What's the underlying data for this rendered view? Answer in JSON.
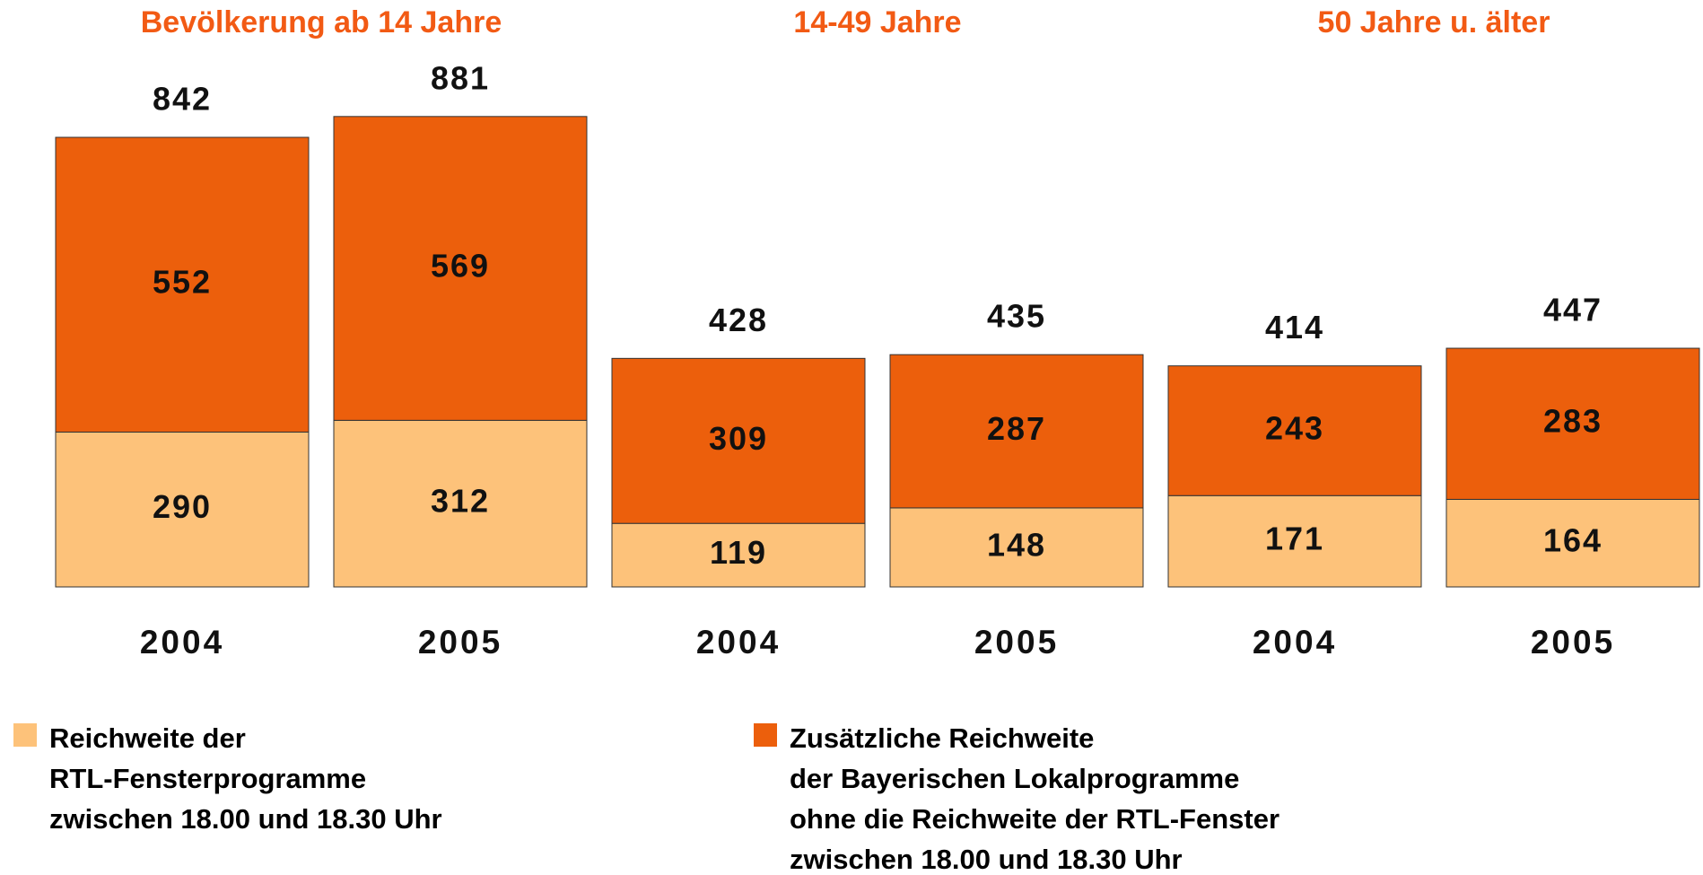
{
  "chart_data": {
    "type": "stacked_bar",
    "groups": [
      "Bevölkerung ab 14 Jahre",
      "14-49 Jahre",
      "50 Jahre u. älter"
    ],
    "categories": [
      "2004",
      "2005",
      "2004",
      "2005",
      "2004",
      "2005"
    ],
    "series": [
      {
        "name": "Reichweite der\nRTL-Fensterprogramme\nzwischen 18.00 und 18.30 Uhr",
        "color": "#fdc27a",
        "values": [
          290,
          312,
          119,
          148,
          171,
          164
        ]
      },
      {
        "name": "Zusätzliche Reichweite\nder Bayerischen Lokalprogramme\nohne die Reichweite der RTL-Fenster\nzwischen  18.00 und 18.30 Uhr",
        "color": "#ec5f0c",
        "values": [
          552,
          569,
          309,
          287,
          243,
          283
        ]
      }
    ],
    "totals": [
      842,
      881,
      428,
      435,
      414,
      447
    ]
  }
}
